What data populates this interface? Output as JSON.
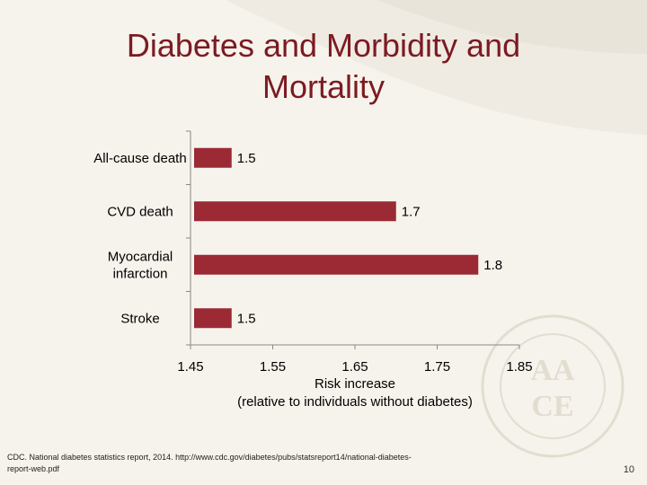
{
  "slide": {
    "title_line1": "Diabetes and Morbidity and",
    "title_line2": "Mortality",
    "xlabel_line1": "Risk increase",
    "xlabel_line2": "(relative to individuals without diabetes)",
    "source": "CDC. National diabetes statistics report, 2014. http://www.cdc.gov/diabetes/pubs/statsreport14/national-diabetes-report-web.pdf",
    "page_number": "10",
    "watermark_text": "AACE"
  },
  "colors": {
    "bar": "#9b2a35",
    "title": "#7c1a22",
    "axis": "#888888"
  },
  "chart_data": {
    "type": "bar",
    "orientation": "horizontal",
    "categories": [
      "All-cause death",
      "CVD death",
      "Myocardial infarction",
      "Stroke"
    ],
    "category_lines": [
      [
        "All-cause death"
      ],
      [
        "CVD death"
      ],
      [
        "Myocardial",
        "infarction"
      ],
      [
        "Stroke"
      ]
    ],
    "values": [
      1.5,
      1.7,
      1.8,
      1.5
    ],
    "value_labels": [
      "1.5",
      "1.7",
      "1.8",
      "1.5"
    ],
    "xlim": [
      1.45,
      1.85
    ],
    "xticks": [
      1.45,
      1.55,
      1.65,
      1.75,
      1.85
    ],
    "xtick_labels": [
      "1.45",
      "1.55",
      "1.65",
      "1.75",
      "1.85"
    ],
    "xlabel": "Risk increase (relative to individuals without diabetes)",
    "grid": false,
    "legend": "none"
  }
}
